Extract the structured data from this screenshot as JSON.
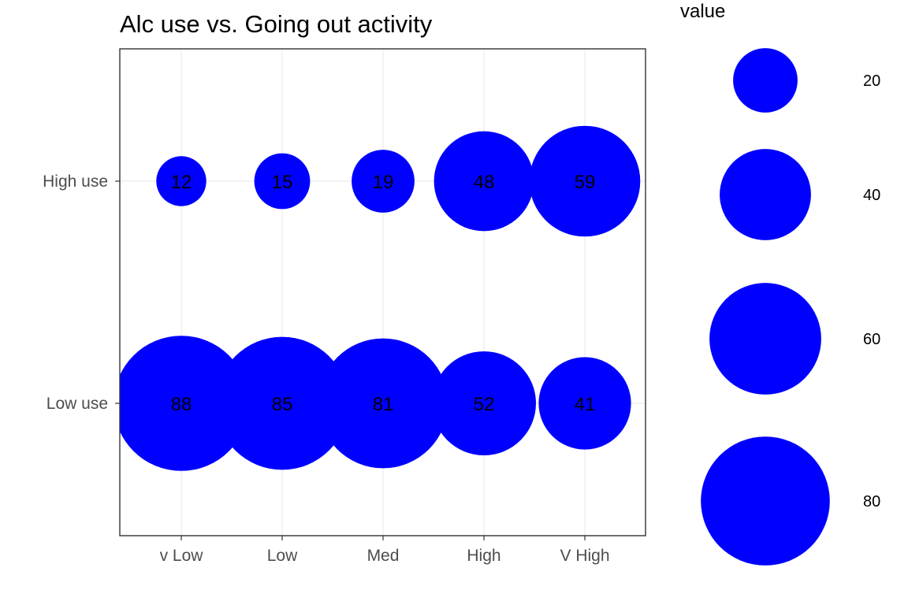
{
  "chart_data": {
    "type": "bubble",
    "title": "Alc use vs. Going out activity",
    "xlabel": "",
    "ylabel": "",
    "x_categories": [
      "v Low",
      "Low",
      "Med",
      "High",
      "V High"
    ],
    "y_categories": [
      "High use",
      "Low use"
    ],
    "points": [
      {
        "x": "v Low",
        "y": "High use",
        "value": 12
      },
      {
        "x": "Low",
        "y": "High use",
        "value": 15
      },
      {
        "x": "Med",
        "y": "High use",
        "value": 19
      },
      {
        "x": "High",
        "y": "High use",
        "value": 48
      },
      {
        "x": "V High",
        "y": "High use",
        "value": 59
      },
      {
        "x": "v Low",
        "y": "Low use",
        "value": 88
      },
      {
        "x": "Low",
        "y": "Low use",
        "value": 85
      },
      {
        "x": "Med",
        "y": "Low use",
        "value": 81
      },
      {
        "x": "High",
        "y": "Low use",
        "value": 52
      },
      {
        "x": "V High",
        "y": "Low use",
        "value": 41
      }
    ],
    "bubble_color": "#0000ff",
    "grid": true,
    "legend": {
      "title": "value",
      "values": [
        20,
        40,
        60,
        80
      ],
      "placement": "right"
    }
  }
}
